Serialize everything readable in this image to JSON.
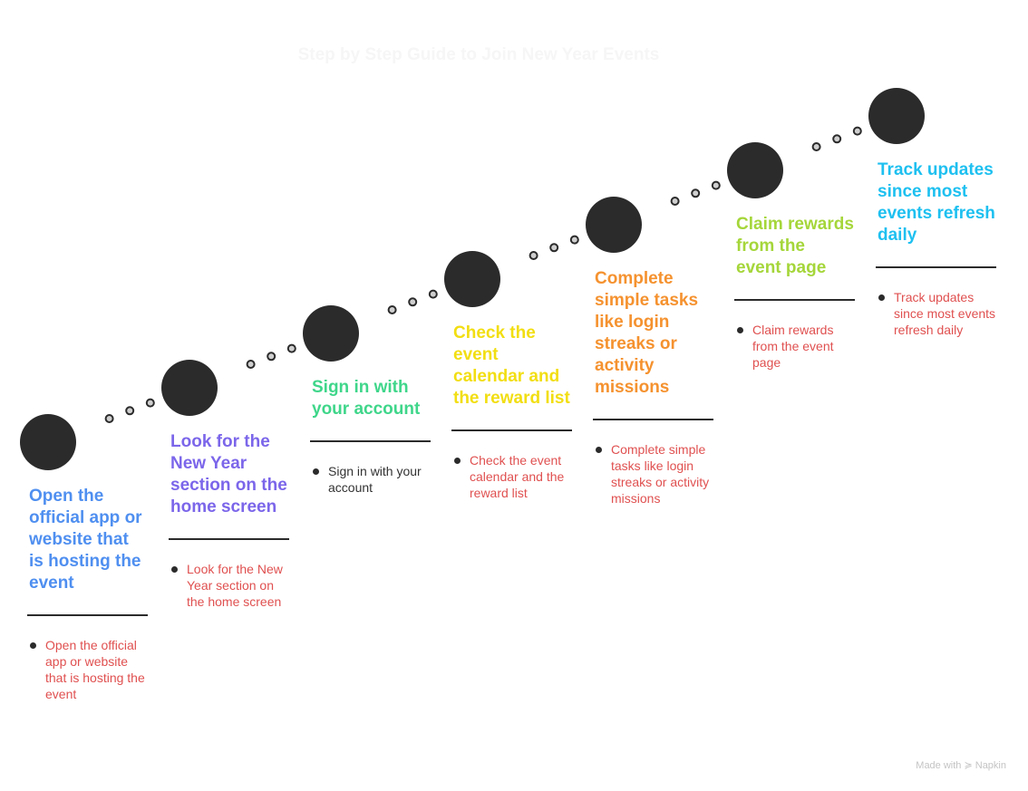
{
  "title": "Step by Step Guide to Join New Year Events",
  "steps": [
    {
      "title": "Open the official app or website that is hosting the event",
      "detail": "Open the official app or website that is hosting the event",
      "color": "#4f8ff0",
      "detail_color": "#e05050"
    },
    {
      "title": "Look for the New Year section on the home screen",
      "detail": "Look for the New Year section on the home screen",
      "color": "#7b66ea",
      "detail_color": "#e05050"
    },
    {
      "title": "Sign in with your account",
      "detail": "Sign in with your account",
      "color": "#3fd68a",
      "detail_color": "#333333"
    },
    {
      "title": "Check the event calendar and the reward list",
      "detail": "Check the event calendar and the reward list",
      "color": "#f2de12",
      "detail_color": "#e05050"
    },
    {
      "title": "Complete simple tasks like login streaks or activity missions",
      "detail": "Complete simple tasks like login streaks or activity missions",
      "color": "#f5922f",
      "detail_color": "#e05050"
    },
    {
      "title": "Claim rewards from the event page",
      "detail": "Claim rewards from the event page",
      "color": "#a5d63a",
      "detail_color": "#e05050"
    },
    {
      "title": "Track updates since most events refresh daily",
      "detail": "Track updates since most events refresh daily",
      "color": "#1ec0f0",
      "detail_color": "#e05050"
    }
  ],
  "credit": "Made with ≽ Napkin"
}
